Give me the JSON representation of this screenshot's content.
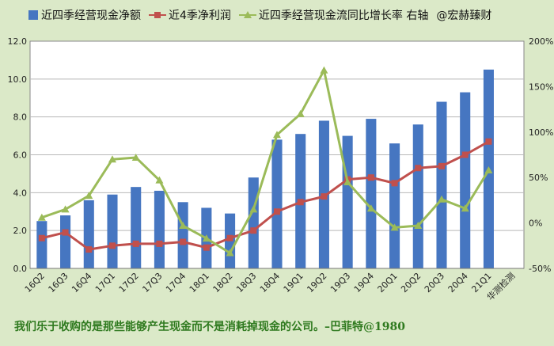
{
  "chart_data": {
    "type": "bar",
    "categories": [
      "16Q2",
      "16Q3",
      "16Q4",
      "17Q1",
      "17Q2",
      "17Q3",
      "17Q4",
      "18Q1",
      "18Q2",
      "18Q3",
      "18Q4",
      "19Q1",
      "19Q2",
      "19Q3",
      "19Q4",
      "20Q1",
      "20Q2",
      "20Q3",
      "20Q4",
      "21Q1",
      "华测检测"
    ],
    "series": [
      {
        "name": "近四季经营现金净额",
        "type": "bar",
        "axis": "left",
        "color": "#4676c1",
        "values": [
          2.5,
          2.8,
          3.6,
          3.9,
          4.3,
          4.1,
          3.5,
          3.2,
          2.9,
          4.8,
          6.8,
          7.1,
          7.8,
          7.0,
          7.9,
          6.6,
          7.6,
          8.8,
          9.3,
          10.5,
          null
        ]
      },
      {
        "name": "近4季净利润",
        "type": "line",
        "axis": "left",
        "color": "#c0504d",
        "marker": "square",
        "values": [
          1.6,
          1.9,
          1.0,
          1.2,
          1.3,
          1.3,
          1.4,
          1.1,
          1.6,
          2.0,
          3.0,
          3.5,
          3.8,
          4.7,
          4.8,
          4.5,
          5.3,
          5.4,
          6.0,
          6.7,
          null
        ]
      },
      {
        "name": "近四季经营现金流同比增长率 右轴",
        "type": "line",
        "axis": "right",
        "color": "#9bbb59",
        "marker": "triangle",
        "values": [
          6,
          15,
          30,
          70,
          72,
          47,
          -3,
          -17,
          -33,
          15,
          97,
          120,
          168,
          45,
          16,
          -5,
          -3,
          26,
          16,
          58,
          null
        ]
      }
    ],
    "y_left": {
      "min": 0,
      "max": 12,
      "ticks": [
        "0.0",
        "2.0",
        "4.0",
        "6.0",
        "8.0",
        "10.0",
        "12.0"
      ]
    },
    "y_right": {
      "min": -50,
      "max": 200,
      "ticks": [
        "-50%",
        "0%",
        "50%",
        "100%",
        "150%",
        "200%"
      ]
    },
    "grid": "horizontal",
    "legend_position": "top"
  },
  "legend": {
    "bar_label": "近四季经营现金净额",
    "profit_label": "近4季净利润",
    "growth_label": "近四季经营现金流同比增长率 右轴",
    "watermark": "@宏赫臻财"
  },
  "quote": "我们乐于收购的是那些能够产生现金而不是消耗掉现金的公司。–巴菲特@1980"
}
